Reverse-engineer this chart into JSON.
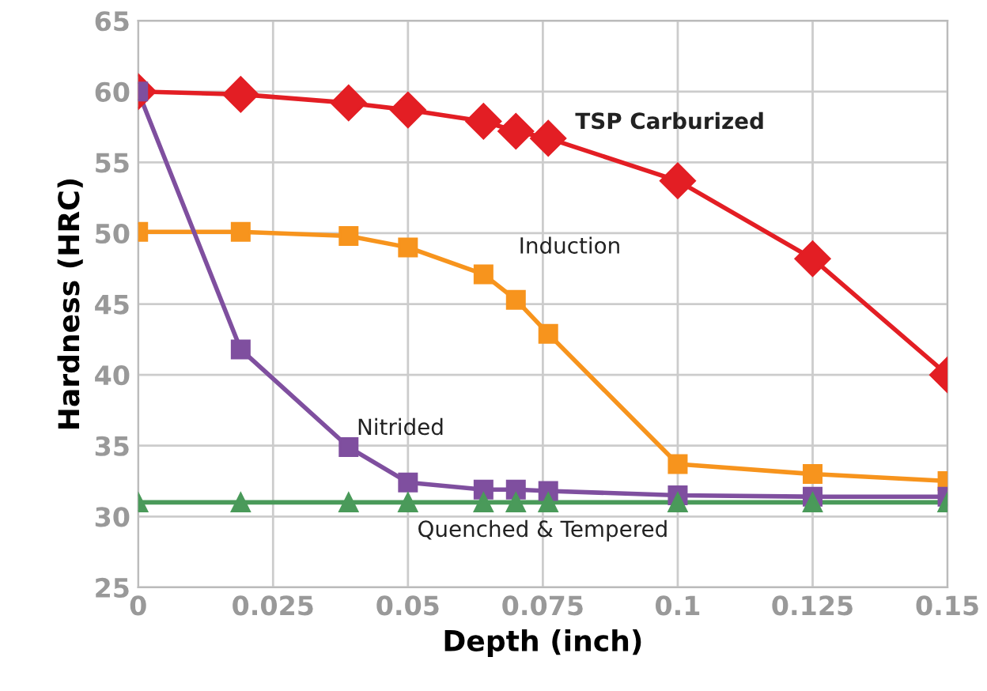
{
  "chart_data": {
    "type": "line",
    "xlabel": "Depth (inch)",
    "ylabel": "Hardness (HRC)",
    "xlim": [
      0,
      0.15
    ],
    "xticks": [
      0,
      0.025,
      0.05,
      0.075,
      0.1,
      0.125,
      0.15
    ],
    "ylim": [
      25,
      65
    ],
    "yticks": [
      25,
      30,
      35,
      40,
      45,
      50,
      55,
      60,
      65
    ],
    "grid": true,
    "legend": false,
    "series": [
      {
        "name": "TSP Carburized",
        "color": "#e31e24",
        "marker": "diamond",
        "x": [
          0,
          0.019,
          0.039,
          0.05,
          0.064,
          0.07,
          0.076,
          0.1,
          0.125,
          0.15
        ],
        "values": [
          60,
          59.8,
          59.2,
          58.7,
          57.9,
          57.2,
          56.7,
          53.7,
          48.2,
          40
        ]
      },
      {
        "name": "Induction",
        "color": "#f7941d",
        "marker": "square",
        "x": [
          0,
          0.019,
          0.039,
          0.05,
          0.064,
          0.07,
          0.076,
          0.1,
          0.125,
          0.15
        ],
        "values": [
          50.1,
          50.1,
          49.8,
          49,
          47.1,
          45.3,
          42.9,
          33.7,
          33,
          32.5
        ]
      },
      {
        "name": "Nitrided",
        "color": "#7f4f9f",
        "marker": "square",
        "x": [
          0,
          0.019,
          0.039,
          0.05,
          0.064,
          0.07,
          0.076,
          0.1,
          0.125,
          0.15
        ],
        "values": [
          60,
          41.8,
          34.9,
          32.4,
          31.9,
          31.9,
          31.8,
          31.5,
          31.4,
          31.4
        ]
      },
      {
        "name": "Quenched & Tempered",
        "color": "#4a9a5a",
        "marker": "triangle",
        "x": [
          0,
          0.019,
          0.039,
          0.05,
          0.064,
          0.07,
          0.076,
          0.1,
          0.125,
          0.15
        ],
        "values": [
          31,
          31,
          31,
          31,
          31,
          31,
          31,
          31,
          31,
          31
        ]
      }
    ]
  }
}
